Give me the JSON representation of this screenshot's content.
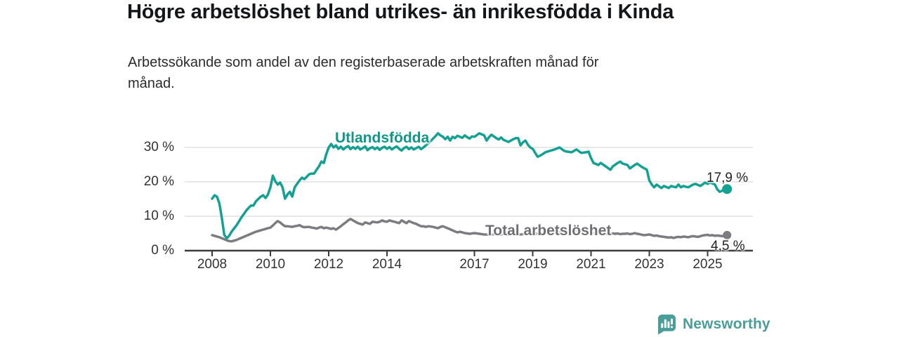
{
  "title": "Högre arbetslöshet bland utrikes- än inrikesfödda i Kinda",
  "subtitle": {
    "line1": "Arbetssökande som andel av den registerbaserade arbetskraften månad för",
    "line2": "månad."
  },
  "chart_data": {
    "type": "line",
    "title": "Högre arbetslöshet bland utrikes- än inrikesfödda i Kinda",
    "subtitle": "Arbetssökande som andel av den registerbaserade arbetskraften månad för månad.",
    "xlabel": "",
    "ylabel": "",
    "x_unit": "year-month",
    "x_start_year": 2008,
    "x_step_months": 1,
    "xlim": [
      2007.1,
      2026.5
    ],
    "ylim": [
      0,
      35
    ],
    "grid": "horizontal",
    "legend": "direct-labels-on-lines",
    "y_ticks": [
      {
        "label": "30 %",
        "value": 30
      },
      {
        "label": "20 %",
        "value": 20
      },
      {
        "label": "10 %",
        "value": 10
      },
      {
        "label": "0 %",
        "value": 0
      }
    ],
    "x_ticks": [
      {
        "label": "2008",
        "year": 2008
      },
      {
        "label": "2010",
        "year": 2010
      },
      {
        "label": "2012",
        "year": 2012
      },
      {
        "label": "2014",
        "year": 2014
      },
      {
        "label": "2017",
        "year": 2017
      },
      {
        "label": "2019",
        "year": 2019
      },
      {
        "label": "2021",
        "year": 2021
      },
      {
        "label": "2023",
        "year": 2023
      },
      {
        "label": "2025",
        "year": 2025
      }
    ],
    "series": [
      {
        "name": "Utlandsfödda",
        "color": "#14a193",
        "label_color": "#10978a",
        "end_label": "17,9 %",
        "end_value": 17.9,
        "values": [
          15.1,
          16.1,
          15.7,
          13.7,
          9.6,
          4.6,
          3.6,
          4.3,
          5.5,
          6.4,
          7.3,
          8.4,
          9.6,
          10.6,
          11.6,
          12.4,
          13.1,
          13.1,
          14.3,
          15.0,
          15.7,
          16.1,
          15.3,
          16.3,
          18.4,
          21.8,
          20.2,
          19.2,
          19.8,
          18.4,
          15.1,
          16.3,
          17.1,
          15.7,
          18.4,
          19.4,
          20.4,
          21.2,
          20.8,
          21.5,
          22.2,
          22.4,
          22.4,
          23.5,
          24.5,
          25.9,
          25.5,
          28.0,
          30.0,
          31.0,
          30.0,
          30.6,
          29.6,
          30.2,
          29.4,
          30.0,
          30.4,
          29.5,
          30.1,
          29.6,
          30.2,
          29.4,
          29.8,
          30.3,
          29.2,
          29.8,
          30.1,
          29.5,
          30.0,
          29.3,
          29.9,
          30.2,
          29.6,
          30.1,
          29.4,
          29.9,
          30.3,
          29.6,
          29.1,
          29.8,
          30.2,
          29.5,
          30.0,
          29.4,
          29.8,
          30.2,
          29.5,
          30.0,
          30.6,
          31.2,
          31.9,
          32.6,
          33.3,
          34.1,
          33.5,
          33.1,
          32.4,
          33.1,
          32.0,
          33.1,
          32.7,
          33.4,
          33.1,
          32.8,
          33.5,
          33.0,
          32.6,
          33.2,
          33.1,
          33.6,
          34.1,
          33.8,
          33.5,
          32.0,
          33.0,
          33.7,
          33.2,
          32.7,
          32.3,
          32.9,
          32.2,
          31.9,
          31.6,
          32.0,
          32.4,
          32.7,
          32.7,
          30.6,
          31.5,
          32.0,
          30.8,
          30.0,
          29.6,
          28.4,
          27.3,
          27.6,
          28.0,
          28.5,
          28.8,
          29.0,
          29.2,
          29.4,
          29.7,
          30.0,
          29.5,
          29.0,
          28.8,
          28.7,
          28.6,
          29.0,
          29.4,
          28.9,
          28.4,
          28.5,
          28.6,
          28.8,
          26.9,
          25.5,
          25.2,
          24.9,
          25.5,
          25.0,
          24.5,
          24.0,
          23.5,
          24.5,
          25.0,
          25.5,
          25.9,
          25.3,
          25.1,
          24.9,
          23.9,
          24.4,
          24.9,
          25.3,
          24.8,
          24.3,
          23.9,
          23.5,
          20.4,
          19.2,
          18.4,
          19.2,
          18.7,
          18.2,
          18.8,
          18.5,
          18.2,
          18.8,
          18.6,
          18.4,
          19.2,
          18.4,
          18.8,
          18.6,
          18.4,
          18.8,
          19.2,
          19.4,
          19.1,
          18.8,
          19.3,
          19.8,
          19.4,
          19.8,
          19.5,
          19.2,
          17.8,
          17.1,
          17.4,
          18.2,
          17.9
        ]
      },
      {
        "name": "Total arbetslöshet",
        "color": "#7c7c80",
        "label_color": "#6f6f74",
        "end_label": "4,5 %",
        "end_value": 4.5,
        "values": [
          4.5,
          4.3,
          4.1,
          3.9,
          3.6,
          3.3,
          3.0,
          2.8,
          2.7,
          2.9,
          3.1,
          3.4,
          3.7,
          4.0,
          4.3,
          4.6,
          4.9,
          5.2,
          5.5,
          5.7,
          5.9,
          6.1,
          6.3,
          6.5,
          6.7,
          7.3,
          8.0,
          8.6,
          8.2,
          7.6,
          7.1,
          7.1,
          7.0,
          6.9,
          7.1,
          7.2,
          7.4,
          7.0,
          6.8,
          6.9,
          6.9,
          6.7,
          6.6,
          6.4,
          6.7,
          6.9,
          6.5,
          6.7,
          6.5,
          6.3,
          6.5,
          6.1,
          6.6,
          7.1,
          7.7,
          8.2,
          8.8,
          9.2,
          8.8,
          8.4,
          8.0,
          7.8,
          7.6,
          8.2,
          8.0,
          7.8,
          8.4,
          8.3,
          8.2,
          8.4,
          8.8,
          8.5,
          8.4,
          8.8,
          8.6,
          8.4,
          8.2,
          8.0,
          8.8,
          8.4,
          8.0,
          8.6,
          8.3,
          8.0,
          7.8,
          7.4,
          7.1,
          7.1,
          6.9,
          7.1,
          7.0,
          6.9,
          6.7,
          6.5,
          6.9,
          7.1,
          6.8,
          6.5,
          6.2,
          5.9,
          5.6,
          5.3,
          5.5,
          5.3,
          5.1,
          5.0,
          4.9,
          5.0,
          5.1,
          5.0,
          4.9,
          4.8,
          4.7,
          4.7,
          4.6,
          4.7,
          4.8,
          4.7,
          4.6,
          4.7,
          4.8,
          4.7,
          4.6,
          4.7,
          4.8,
          4.9,
          4.8,
          4.7,
          4.8,
          4.9,
          5.0,
          4.9,
          5.0,
          4.9,
          5.0,
          5.1,
          5.0,
          5.1,
          5.2,
          5.1,
          5.2,
          5.3,
          5.2,
          5.3,
          5.4,
          5.5,
          5.6,
          5.8,
          5.9,
          5.8,
          5.7,
          5.6,
          5.5,
          5.4,
          5.3,
          5.2,
          5.3,
          5.2,
          5.1,
          5.0,
          4.9,
          5.0,
          4.9,
          4.8,
          4.9,
          5.0,
          4.9,
          5.0,
          4.8,
          4.9,
          4.9,
          5.0,
          4.8,
          4.9,
          5.1,
          4.9,
          4.8,
          4.6,
          4.5,
          4.6,
          4.7,
          4.5,
          4.3,
          4.4,
          4.2,
          4.1,
          4.0,
          3.9,
          3.8,
          3.9,
          3.7,
          3.9,
          4.0,
          3.9,
          4.1,
          4.0,
          3.9,
          4.1,
          4.2,
          4.1,
          4.0,
          4.2,
          4.4,
          4.5,
          4.6,
          4.4,
          4.5,
          4.3,
          4.4,
          4.3,
          4.2,
          4.4,
          4.5
        ]
      }
    ]
  },
  "logo": {
    "text": "Newsworthy",
    "color": "#4a9e99"
  }
}
